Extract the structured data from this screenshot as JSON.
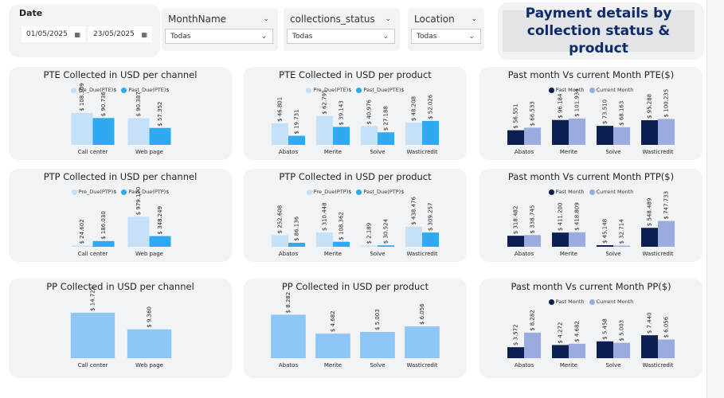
{
  "filters": {
    "date": {
      "label": "Date",
      "start": "01/05/2025",
      "end": "23/05/2025"
    },
    "month": {
      "label": "MonthName",
      "value": "Todas"
    },
    "status": {
      "label": "collections_status",
      "value": "Todas"
    },
    "location": {
      "label": "Location",
      "value": "Todas"
    }
  },
  "header": {
    "title_line1": "Payment details by",
    "title_line2": "collection status & product"
  },
  "colors": {
    "pre_due": "#c5e1f9",
    "past_due": "#2eaaf0",
    "past_month": "#0b1f52",
    "current_month": "#9aacdf",
    "single": "#8ec6f5"
  },
  "charts": [
    {
      "id": "pte-channel",
      "title": "PTE Collected in USD per channel",
      "type": "bar",
      "legend": [
        "Pre_Due(PTE)$",
        "Past_Due(PTE)$"
      ],
      "ylim": [
        0,
        140000
      ],
      "categories": [
        "Call center",
        "Web page"
      ],
      "series": [
        {
          "name": "Pre_Due(PTE)$",
          "values": [
            108309,
            90387
          ],
          "labels": [
            "$ 108.309",
            "$ 90.387"
          ]
        },
        {
          "name": "Past_Due(PTE)$",
          "values": [
            90736,
            57352
          ],
          "labels": [
            "$ 90.736",
            "$ 57.352"
          ]
        }
      ]
    },
    {
      "id": "pte-product",
      "title": "PTE Collected in USD per product",
      "type": "bar",
      "legend": [
        "Pre_Due(PTE)$",
        "Past_Due(PTE)$"
      ],
      "ylim": [
        0,
        90000
      ],
      "categories": [
        "Abatos",
        "Merite",
        "Solve",
        "Wasticredit"
      ],
      "series": [
        {
          "name": "Pre_Due(PTE)$",
          "values": [
            46801,
            62791,
            40976,
            48208
          ],
          "labels": [
            "$ 46.801",
            "$ 62.791",
            "$ 40.976",
            "$ 48.208"
          ]
        },
        {
          "name": "Past_Due(PTE)$",
          "values": [
            19731,
            39143,
            27188,
            52026
          ],
          "labels": [
            "$ 19.731",
            "$ 39.143",
            "$ 27.188",
            "$ 52.026"
          ]
        }
      ]
    },
    {
      "id": "pte-month",
      "title": "Past month Vs current Month PTE($)",
      "type": "bar",
      "legend": [
        "Past Month",
        "Current Month"
      ],
      "ylim": [
        0,
        160000
      ],
      "categories": [
        "Abatos",
        "Merite",
        "Solve",
        "Wasticredit"
      ],
      "series": [
        {
          "name": "Past Month",
          "values": [
            56551,
            96184,
            73510,
            95288
          ],
          "labels": [
            "$ 56.551",
            "$ 96.184",
            "$ 73.510",
            "$ 95.288"
          ]
        },
        {
          "name": "Current Month",
          "values": [
            66533,
            101934,
            68163,
            100235
          ],
          "labels": [
            "$ 66.533",
            "$ 101.934",
            "$ 68.163",
            "$ 100.235"
          ]
        }
      ]
    },
    {
      "id": "ptp-channel",
      "title": "PTP Collected in USD per channel",
      "type": "bar",
      "legend": [
        "Pre_Due(PTP)$",
        "Past_Due(PTP)$"
      ],
      "ylim": [
        0,
        1350000
      ],
      "categories": [
        "Call center",
        "Web page"
      ],
      "series": [
        {
          "name": "Pre_Due(PTP)$",
          "values": [
            24602,
            979120
          ],
          "labels": [
            "$ 24.602",
            "$ 979.120"
          ]
        },
        {
          "name": "Past_Due(PTP)$",
          "values": [
            186030,
            348249
          ],
          "labels": [
            "$ 186.030",
            "$ 348.249"
          ]
        }
      ]
    },
    {
      "id": "ptp-product",
      "title": "PTP Collected in USD per product",
      "type": "bar",
      "legend": [
        "Pre_Due(PTP)$",
        "Past_Due(PTP)$"
      ],
      "ylim": [
        0,
        900000
      ],
      "categories": [
        "Abatos",
        "Merite",
        "Solve",
        "Wasticredit"
      ],
      "series": [
        {
          "name": "Pre_Due(PTP)$",
          "values": [
            252608,
            310448,
            2189,
            438476
          ],
          "labels": [
            "$ 252.608",
            "$ 310.448",
            "$ 2.189",
            "$ 438.476"
          ]
        },
        {
          "name": "Past_Due(PTP)$",
          "values": [
            86136,
            108362,
            30524,
            309257
          ],
          "labels": [
            "$ 86.136",
            "$ 108.362",
            "$ 30.524",
            "$ 309.257"
          ]
        }
      ]
    },
    {
      "id": "ptp-month",
      "title": "Past month Vs current Month PTP($)",
      "type": "bar",
      "legend": [
        "Past Month",
        "Current Month"
      ],
      "ylim": [
        0,
        1200000
      ],
      "categories": [
        "Abatos",
        "Merite",
        "Solve",
        "Wasticredit"
      ],
      "series": [
        {
          "name": "Past Month",
          "values": [
            318482,
            411200,
            45148,
            548489
          ],
          "labels": [
            "$ 318.482",
            "$ 411.200",
            "$ 45.148",
            "$ 548.489"
          ]
        },
        {
          "name": "Current Month",
          "values": [
            338745,
            418809,
            32714,
            747733
          ],
          "labels": [
            "$ 338.745",
            "$ 418.809",
            "$ 32.714",
            "$ 747.733"
          ]
        }
      ]
    },
    {
      "id": "pp-channel",
      "title": "PP Collected in USD per channel",
      "type": "bar",
      "legend": [],
      "ylim": [
        0,
        16000
      ],
      "categories": [
        "Call center",
        "Web page"
      ],
      "series": [
        {
          "name": "",
          "values": [
            14723,
            9360
          ],
          "labels": [
            "$ 14.723",
            "$ 9.360"
          ]
        }
      ]
    },
    {
      "id": "pp-product",
      "title": "PP Collected in USD per product",
      "type": "bar",
      "legend": [],
      "ylim": [
        0,
        9400
      ],
      "categories": [
        "Abatos",
        "Merite",
        "Solve",
        "Wasticredit"
      ],
      "series": [
        {
          "name": "",
          "values": [
            8282,
            4682,
            5003,
            6056
          ],
          "labels": [
            "$ 8.282",
            "$ 4.682",
            "$ 5.003",
            "$ 6.056"
          ]
        }
      ]
    },
    {
      "id": "pp-month",
      "title": "Past month Vs current Month PP($)",
      "type": "bar",
      "legend": [
        "Past Month",
        "Current Month"
      ],
      "ylim": [
        0,
        16000
      ],
      "categories": [
        "Abatos",
        "Merite",
        "Solve",
        "Wasticredit"
      ],
      "series": [
        {
          "name": "Past Month",
          "values": [
            3572,
            4272,
            5458,
            7440
          ],
          "labels": [
            "$ 3.572",
            "$ 4.272",
            "$ 5.458",
            "$ 7.440"
          ]
        },
        {
          "name": "Current Month",
          "values": [
            8282,
            4682,
            5003,
            6056
          ],
          "labels": [
            "$ 8.282",
            "$ 4.682",
            "$ 5.003",
            "$ 6.056"
          ]
        }
      ]
    }
  ]
}
